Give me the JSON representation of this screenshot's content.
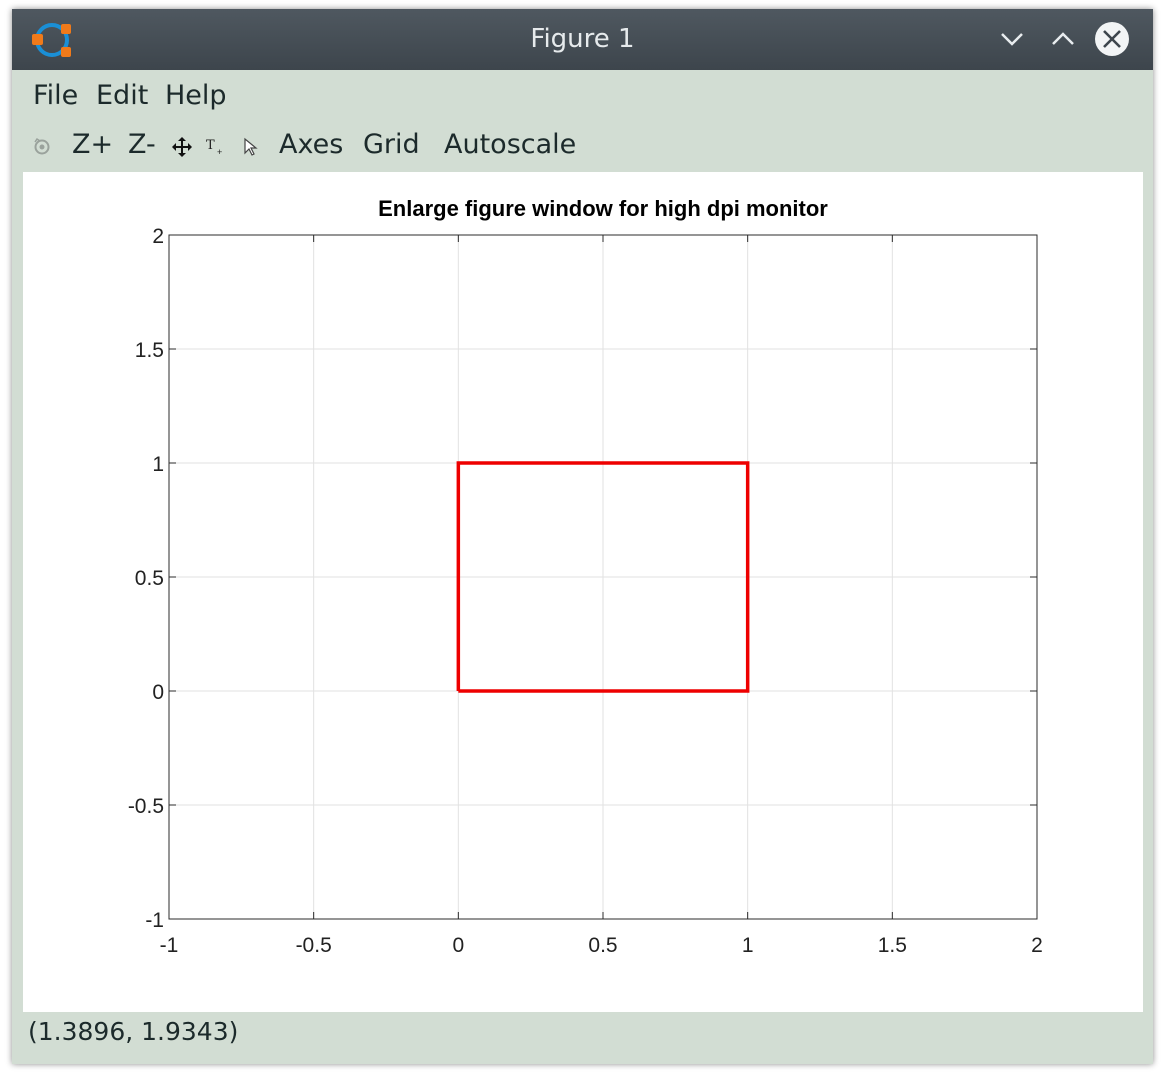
{
  "window": {
    "title": "Figure 1"
  },
  "menu": {
    "items": [
      "File",
      "Edit",
      "Help"
    ]
  },
  "toolbar": {
    "zoom_in": "Z+",
    "zoom_out": "Z-",
    "axes": "Axes",
    "grid": "Grid",
    "autoscale": "Autoscale",
    "icons": [
      "rotate-icon",
      "pan-icon",
      "insert-text-icon",
      "select-pointer-icon"
    ]
  },
  "status": {
    "coordinates": "(1.3896, 1.9343)"
  },
  "colors": {
    "titlebar": "#434b52",
    "chrome": "#d2ddd3",
    "line": "#ee0000"
  },
  "chart_data": {
    "type": "line",
    "title": "Enlarge figure window for high dpi monitor",
    "xlabel": "",
    "ylabel": "",
    "xlim": [
      -1,
      2
    ],
    "ylim": [
      -1,
      2
    ],
    "xticks": [
      -1,
      -0.5,
      0,
      0.5,
      1,
      1.5,
      2
    ],
    "yticks": [
      -1,
      -0.5,
      0,
      0.5,
      1,
      1.5,
      2
    ],
    "xtick_labels": [
      "-1",
      "-0.5",
      "0",
      "0.5",
      "1",
      "1.5",
      "2"
    ],
    "ytick_labels": [
      "-1",
      "-0.5",
      "0",
      "0.5",
      "1",
      "1.5",
      "2"
    ],
    "grid": true,
    "series": [
      {
        "color": "#ee0000",
        "x": [
          0,
          1,
          1,
          0,
          0
        ],
        "y": [
          0,
          0,
          1,
          1,
          0
        ]
      }
    ]
  }
}
